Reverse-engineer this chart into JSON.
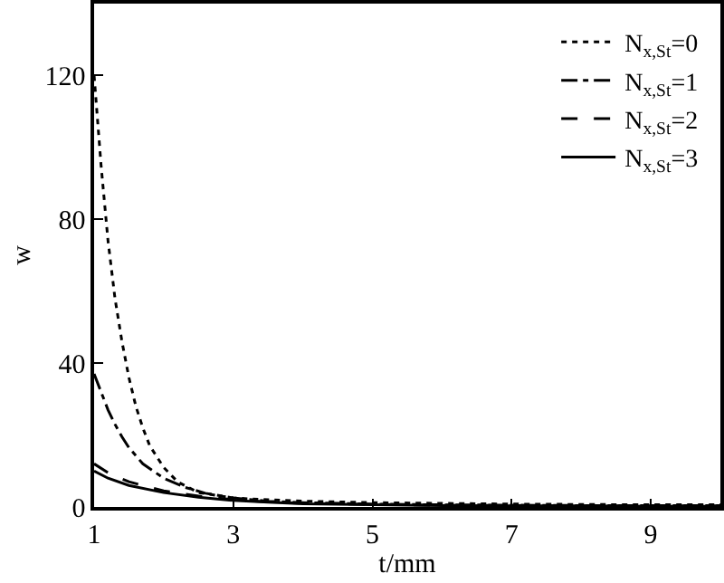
{
  "chart_data": {
    "type": "line",
    "xlabel": "t/mm",
    "ylabel": "w",
    "xlim": [
      1,
      10
    ],
    "ylim": [
      0,
      140
    ],
    "xticks": [
      1,
      3,
      5,
      7,
      9
    ],
    "yticks": [
      0,
      40,
      80,
      120
    ],
    "grid": false,
    "legend": "top right",
    "marker": "none",
    "series": [
      {
        "name": "N$_{x,St}$=0",
        "color": "#000000",
        "line_style": "dotted",
        "x": [
          1,
          1.1,
          1.2,
          1.3,
          1.4,
          1.5,
          1.6,
          1.7,
          1.8,
          2,
          2.2,
          2.5,
          3,
          3.5,
          4,
          5,
          6,
          7,
          8,
          9,
          10
        ],
        "values": [
          120,
          95,
          74,
          58,
          46,
          36,
          28,
          22,
          17,
          11,
          7,
          4,
          2.5,
          2,
          1.6,
          1.2,
          1,
          0.8,
          0.7,
          0.6,
          0.6
        ]
      },
      {
        "name": "N$_{x,St}$=1",
        "color": "#000000",
        "line_style": "dashdot",
        "x": [
          1,
          1.1,
          1.2,
          1.3,
          1.4,
          1.5,
          1.7,
          2,
          2.3,
          2.6,
          3,
          3.5,
          4,
          5,
          6,
          7,
          8,
          9,
          10
        ],
        "values": [
          37,
          32,
          27,
          23,
          19.5,
          16.5,
          12,
          8,
          5.5,
          3.8,
          2.5,
          1.6,
          1.2,
          0.8,
          0.6,
          0.5,
          0.4,
          0.4,
          0.4
        ]
      },
      {
        "name": "N$_{x,St}$=2",
        "color": "#000000",
        "line_style": "dashed",
        "x": [
          1,
          1.2,
          1.5,
          2,
          2.5,
          3,
          3.5,
          4,
          5,
          6,
          7,
          8,
          9,
          10
        ],
        "values": [
          12,
          9.5,
          7,
          4.5,
          3,
          2,
          1.4,
          1,
          0.7,
          0.5,
          0.4,
          0.3,
          0.3,
          0.3
        ]
      },
      {
        "name": "N$_{x,St}$=3",
        "color": "#000000",
        "line_style": "solid",
        "x": [
          1,
          1.2,
          1.5,
          2,
          2.5,
          3,
          3.5,
          4,
          5,
          6,
          7,
          8,
          9,
          10
        ],
        "values": [
          10,
          8,
          6,
          4,
          2.7,
          1.8,
          1.3,
          0.9,
          0.6,
          0.4,
          0.3,
          0.3,
          0.2,
          0.2
        ]
      }
    ]
  }
}
